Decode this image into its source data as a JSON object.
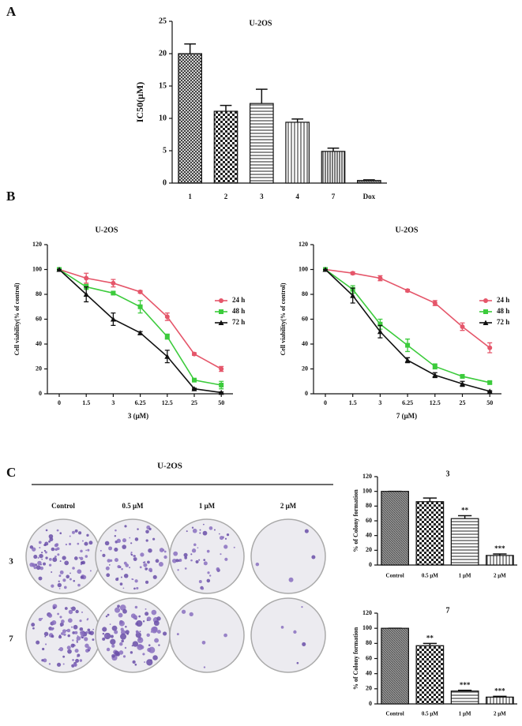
{
  "panel_labels": [
    "A",
    "B",
    "C"
  ],
  "colony_assay": {
    "title": "U-2OS",
    "columns": [
      "Control",
      "0.5 μM",
      "1 μM",
      "2 μM"
    ],
    "rows": [
      "3",
      "7"
    ]
  },
  "chart_data": [
    {
      "type": "bar",
      "title": "U-2OS",
      "ylabel": "IC50(μM)",
      "categories": [
        "1",
        "2",
        "3",
        "4",
        "7",
        "Dox"
      ],
      "values": [
        20,
        11.1,
        12.3,
        9.4,
        4.9,
        0.4
      ],
      "errors": [
        1.5,
        0.9,
        2.2,
        0.5,
        0.5,
        0.1
      ],
      "patterns": [
        "crosshatch",
        "checker",
        "hlines",
        "vlines",
        "vlines-wide",
        "dense"
      ],
      "ylim": [
        0,
        25
      ],
      "yticks": [
        0,
        5,
        10,
        15,
        20,
        25
      ]
    },
    {
      "type": "line",
      "title": "U-2OS",
      "xlabel": "3 (μM)",
      "ylabel": "Cell viability(% of control)",
      "categories": [
        "0",
        "1.5",
        "3",
        "6.25",
        "12.5",
        "25",
        "50"
      ],
      "ylim": [
        0,
        120
      ],
      "yticks": [
        0,
        20,
        40,
        60,
        80,
        100,
        120
      ],
      "series": [
        {
          "name": "24 h",
          "color": "#e5566a",
          "marker": "circle",
          "values": [
            100,
            93,
            89,
            82,
            62,
            32,
            20
          ],
          "errors": [
            0,
            4,
            3,
            1,
            3,
            1,
            2
          ]
        },
        {
          "name": "48 h",
          "color": "#3ccb3c",
          "marker": "square",
          "values": [
            100,
            86,
            81,
            70,
            46,
            11,
            7
          ],
          "errors": [
            0,
            2,
            1,
            5,
            2,
            1,
            3
          ]
        },
        {
          "name": "72 h",
          "color": "#111111",
          "marker": "triangle",
          "values": [
            100,
            80,
            60,
            49,
            30,
            4,
            1
          ],
          "errors": [
            0,
            6,
            5,
            1,
            5,
            0.5,
            0.5
          ]
        }
      ]
    },
    {
      "type": "line",
      "title": "U-2OS",
      "xlabel": "7 (μM)",
      "ylabel": "Cell viability(% of control)",
      "categories": [
        "0",
        "1.5",
        "3",
        "6.25",
        "12.5",
        "25",
        "50"
      ],
      "ylim": [
        0,
        120
      ],
      "yticks": [
        0,
        20,
        40,
        60,
        80,
        100,
        120
      ],
      "series": [
        {
          "name": "24 h",
          "color": "#e5566a",
          "marker": "circle",
          "values": [
            100,
            97,
            93,
            83,
            73,
            54,
            37
          ],
          "errors": [
            0,
            1,
            2,
            1,
            2,
            3,
            4
          ]
        },
        {
          "name": "48 h",
          "color": "#3ccb3c",
          "marker": "square",
          "values": [
            100,
            84,
            56,
            39,
            22,
            14,
            9
          ],
          "errors": [
            0,
            3,
            4,
            5,
            2,
            1,
            1
          ]
        },
        {
          "name": "72 h",
          "color": "#111111",
          "marker": "triangle",
          "values": [
            100,
            79,
            50,
            27,
            15,
            8,
            2
          ],
          "errors": [
            0,
            6,
            5,
            2,
            2,
            2,
            0.5
          ]
        }
      ]
    },
    {
      "type": "bar",
      "title": "3",
      "ylabel": "% of Colony formation",
      "categories": [
        "Control",
        "0.5 μM",
        "1 μM",
        "2 μM"
      ],
      "values": [
        100,
        86,
        63,
        13
      ],
      "errors": [
        0,
        5,
        4,
        2
      ],
      "annotations": [
        null,
        null,
        "**",
        "***"
      ],
      "patterns": [
        "dense",
        "checker",
        "hlines",
        "vlines"
      ],
      "ylim": [
        0,
        120
      ],
      "yticks": [
        0,
        20,
        40,
        60,
        80,
        100,
        120
      ]
    },
    {
      "type": "bar",
      "title": "7",
      "ylabel": "% of Colony formation",
      "categories": [
        "Control",
        "0.5 μM",
        "1 μM",
        "2 μM"
      ],
      "values": [
        100,
        77,
        17,
        9
      ],
      "errors": [
        0,
        3,
        1,
        1
      ],
      "annotations": [
        null,
        "**",
        "***",
        "***"
      ],
      "patterns": [
        "dense",
        "checker",
        "hlines",
        "vlines"
      ],
      "ylim": [
        0,
        120
      ],
      "yticks": [
        0,
        20,
        40,
        60,
        80,
        100,
        120
      ]
    }
  ]
}
